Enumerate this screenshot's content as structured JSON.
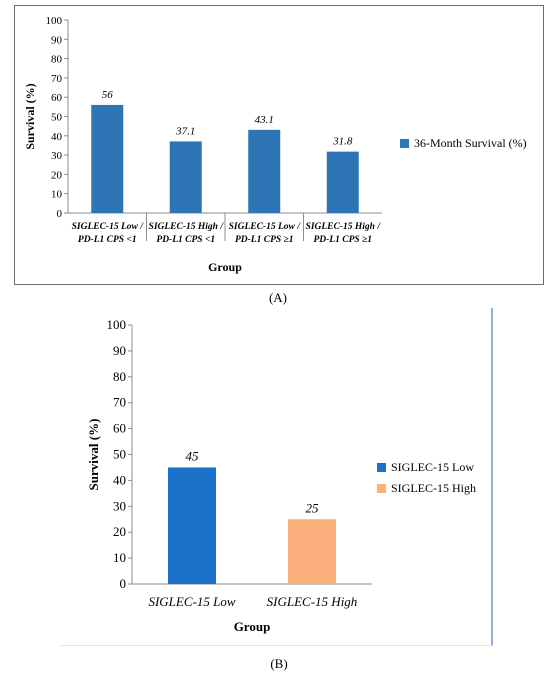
{
  "figure": {
    "panel_a_label": "(A)",
    "panel_b_label": "(B)"
  },
  "chart_data": [
    {
      "type": "bar",
      "panel": "A",
      "categories": [
        [
          "SIGLEC-15 Low /",
          "PD-L1 CPS <1"
        ],
        [
          "SIGLEC-15 High /",
          "PD-L1 CPS <1"
        ],
        [
          "SIGLEC-15 Low /",
          "PD-L1 CPS ≥1"
        ],
        [
          "SIGLEC-15 High /",
          "PD-L1 CPS ≥1"
        ]
      ],
      "series": [
        {
          "name": "36-Month Survival (%)",
          "values": [
            56,
            37.1,
            43.1,
            31.8
          ],
          "color": "#2e75b6"
        }
      ],
      "data_labels": [
        "56",
        "37.1",
        "43.1",
        "31.8"
      ],
      "xlabel": "Group",
      "ylabel": "Survival (%)",
      "ylim": [
        0,
        100
      ],
      "yticks": [
        0,
        10,
        20,
        30,
        40,
        50,
        60,
        70,
        80,
        90,
        100
      ],
      "grid": false,
      "legend": "right"
    },
    {
      "type": "bar",
      "panel": "B",
      "categories": [
        "SIGLEC-15 Low",
        "SIGLEC-15 High"
      ],
      "series": [
        {
          "name": "SIGLEC-15 Low",
          "values": [
            45,
            null
          ],
          "color": "#1a73c8"
        },
        {
          "name": "SIGLEC-15 High",
          "values": [
            null,
            25
          ],
          "color": "#fbb07e"
        }
      ],
      "data_labels": [
        "45",
        "25"
      ],
      "xlabel": "Group",
      "ylabel": "Survival (%)",
      "ylim": [
        0,
        100
      ],
      "yticks": [
        0,
        10,
        20,
        30,
        40,
        50,
        60,
        70,
        80,
        90,
        100
      ],
      "grid": false,
      "legend": "right"
    }
  ]
}
